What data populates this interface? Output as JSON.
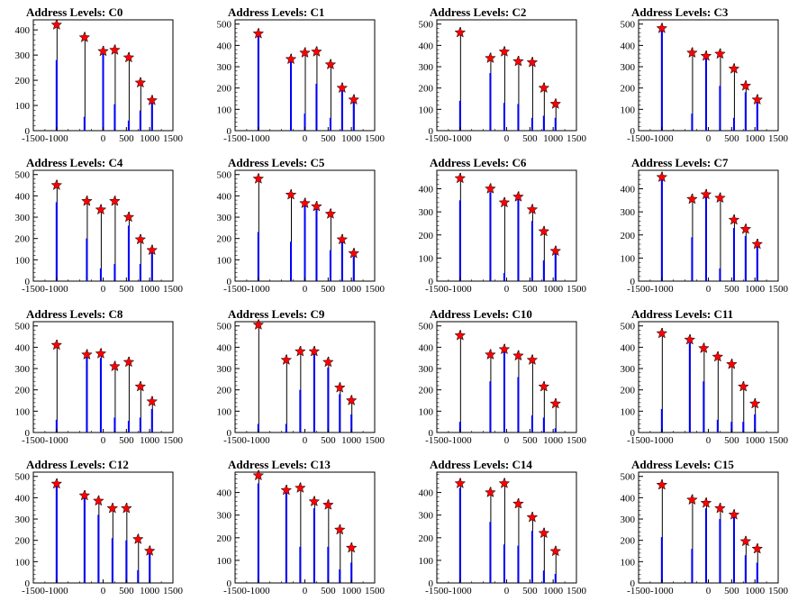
{
  "colors": {
    "bar": "#0000ff",
    "marker": "#ff0000",
    "axis": "#000000",
    "background": "#ffffff"
  },
  "chart_data": [
    {
      "type": "bar",
      "title": "Address Levels: C0",
      "xlim": [
        -1500,
        1500
      ],
      "ylim": [
        0,
        440
      ],
      "xticks": [
        "-1500",
        "-1000",
        "0",
        "500",
        "1000",
        "1500"
      ],
      "yticks": [
        "0",
        "100",
        "200",
        "300",
        "400"
      ],
      "x": [
        -1000,
        -400,
        0,
        250,
        550,
        800,
        1050
      ],
      "values": [
        280,
        55,
        310,
        105,
        40,
        80,
        120
      ],
      "peaks": [
        420,
        370,
        315,
        320,
        290,
        190,
        120
      ]
    },
    {
      "type": "bar",
      "title": "Address Levels: C1",
      "xlim": [
        -1500,
        1500
      ],
      "ylim": [
        0,
        520
      ],
      "xticks": [
        "-1500",
        "-1000",
        "0",
        "500",
        "1000",
        "1500"
      ],
      "yticks": [
        "0",
        "100",
        "200",
        "300",
        "400",
        "500"
      ],
      "x": [
        -1000,
        -300,
        0,
        250,
        550,
        800,
        1050
      ],
      "values": [
        450,
        330,
        80,
        220,
        60,
        190,
        140
      ],
      "peaks": [
        455,
        335,
        365,
        370,
        310,
        200,
        145
      ]
    },
    {
      "type": "bar",
      "title": "Address Levels: C2",
      "xlim": [
        -1500,
        1500
      ],
      "ylim": [
        0,
        520
      ],
      "xticks": [
        "-1500",
        "-1000",
        "0",
        "500",
        "1000",
        "1500"
      ],
      "yticks": [
        "0",
        "100",
        "200",
        "300",
        "400",
        "500"
      ],
      "x": [
        -1000,
        -350,
        -50,
        250,
        550,
        800,
        1050
      ],
      "values": [
        140,
        270,
        130,
        125,
        60,
        70,
        60
      ],
      "peaks": [
        460,
        340,
        370,
        325,
        320,
        200,
        125
      ]
    },
    {
      "type": "bar",
      "title": "Address Levels: C3",
      "xlim": [
        -1500,
        1500
      ],
      "ylim": [
        0,
        520
      ],
      "xticks": [
        "-1500",
        "-1000",
        "0",
        "500",
        "1000",
        "1500"
      ],
      "yticks": [
        "0",
        "100",
        "200",
        "300",
        "400",
        "500"
      ],
      "x": [
        -1000,
        -350,
        -50,
        250,
        550,
        800,
        1050
      ],
      "values": [
        470,
        80,
        360,
        210,
        60,
        180,
        135
      ],
      "peaks": [
        480,
        365,
        350,
        360,
        290,
        210,
        145
      ]
    },
    {
      "type": "bar",
      "title": "Address Levels: C4",
      "xlim": [
        -1500,
        1500
      ],
      "ylim": [
        0,
        520
      ],
      "xticks": [
        "-1500",
        "-1000",
        "0",
        "500",
        "1000",
        "1500"
      ],
      "yticks": [
        "0",
        "100",
        "200",
        "300",
        "400",
        "500"
      ],
      "x": [
        -1000,
        -350,
        -50,
        250,
        550,
        800,
        1050
      ],
      "values": [
        370,
        200,
        60,
        80,
        260,
        80,
        140
      ],
      "peaks": [
        450,
        375,
        335,
        375,
        300,
        195,
        145
      ]
    },
    {
      "type": "bar",
      "title": "Address Levels: C5",
      "xlim": [
        -1500,
        1500
      ],
      "ylim": [
        0,
        520
      ],
      "xticks": [
        "-1500",
        "-1000",
        "0",
        "500",
        "1000",
        "1500"
      ],
      "yticks": [
        "0",
        "100",
        "200",
        "300",
        "400",
        "500"
      ],
      "x": [
        -1000,
        -300,
        0,
        250,
        550,
        800,
        1050
      ],
      "values": [
        230,
        185,
        360,
        340,
        145,
        190,
        115
      ],
      "peaks": [
        480,
        405,
        365,
        350,
        315,
        195,
        130
      ]
    },
    {
      "type": "bar",
      "title": "Address Levels: C6",
      "xlim": [
        -1500,
        1500
      ],
      "ylim": [
        0,
        480
      ],
      "xticks": [
        "-1500",
        "-1000",
        "0",
        "500",
        "1000",
        "1500"
      ],
      "yticks": [
        "0",
        "100",
        "200",
        "300",
        "400"
      ],
      "x": [
        -1000,
        -350,
        -50,
        250,
        550,
        800,
        1050
      ],
      "values": [
        350,
        385,
        35,
        370,
        260,
        90,
        120
      ],
      "peaks": [
        445,
        400,
        340,
        365,
        310,
        215,
        130
      ]
    },
    {
      "type": "bar",
      "title": "Address Levels: C7",
      "xlim": [
        -1500,
        1500
      ],
      "ylim": [
        0,
        480
      ],
      "xticks": [
        "-1500",
        "-1000",
        "0",
        "500",
        "1000",
        "1500"
      ],
      "yticks": [
        "0",
        "100",
        "200",
        "300",
        "400"
      ],
      "x": [
        -1000,
        -350,
        -50,
        250,
        550,
        800,
        1050
      ],
      "values": [
        450,
        190,
        370,
        55,
        230,
        195,
        160
      ],
      "peaks": [
        450,
        355,
        375,
        360,
        265,
        225,
        160
      ]
    },
    {
      "type": "bar",
      "title": "Address Levels: C8",
      "xlim": [
        -1500,
        1500
      ],
      "ylim": [
        0,
        520
      ],
      "xticks": [
        "-1500",
        "-1000",
        "0",
        "500",
        "1000",
        "1500"
      ],
      "yticks": [
        "0",
        "100",
        "200",
        "300",
        "400",
        "500"
      ],
      "x": [
        -1000,
        -350,
        -50,
        250,
        550,
        800,
        1050
      ],
      "values": [
        60,
        360,
        350,
        70,
        55,
        70,
        110
      ],
      "peaks": [
        410,
        365,
        370,
        310,
        330,
        215,
        145
      ]
    },
    {
      "type": "bar",
      "title": "Address Levels: C9",
      "xlim": [
        -1500,
        1500
      ],
      "ylim": [
        0,
        520
      ],
      "xticks": [
        "-1500",
        "-1000",
        "0",
        "500",
        "1000",
        "1500"
      ],
      "yticks": [
        "0",
        "100",
        "200",
        "300",
        "400",
        "500"
      ],
      "x": [
        -1000,
        -400,
        -100,
        200,
        500,
        750,
        1000
      ],
      "values": [
        40,
        40,
        200,
        390,
        305,
        180,
        85
      ],
      "peaks": [
        505,
        340,
        380,
        380,
        330,
        210,
        150
      ]
    },
    {
      "type": "bar",
      "title": "Address Levels: C10",
      "xlim": [
        -1500,
        1500
      ],
      "ylim": [
        0,
        520
      ],
      "xticks": [
        "-1500",
        "-1000",
        "0",
        "500",
        "1000",
        "1500"
      ],
      "yticks": [
        "0",
        "100",
        "200",
        "300",
        "400",
        "500"
      ],
      "x": [
        -1000,
        -350,
        -50,
        250,
        550,
        800,
        1050
      ],
      "values": [
        50,
        240,
        380,
        260,
        80,
        70,
        20
      ],
      "peaks": [
        455,
        365,
        390,
        360,
        340,
        215,
        135
      ]
    },
    {
      "type": "bar",
      "title": "Address Levels: C11",
      "xlim": [
        -1500,
        1500
      ],
      "ylim": [
        0,
        520
      ],
      "xticks": [
        "-1500",
        "-1000",
        "0",
        "500",
        "1000",
        "1500"
      ],
      "yticks": [
        "0",
        "100",
        "200",
        "300",
        "400",
        "500"
      ],
      "x": [
        -1000,
        -400,
        -100,
        200,
        500,
        750,
        1000
      ],
      "values": [
        110,
        420,
        240,
        60,
        50,
        50,
        85
      ],
      "peaks": [
        465,
        435,
        395,
        355,
        320,
        215,
        135
      ]
    },
    {
      "type": "bar",
      "title": "Address Levels: C12",
      "xlim": [
        -1500,
        1500
      ],
      "ylim": [
        0,
        520
      ],
      "xticks": [
        "-1500",
        "-1000",
        "0",
        "500",
        "1000",
        "1500"
      ],
      "yticks": [
        "0",
        "100",
        "200",
        "300",
        "400",
        "500"
      ],
      "x": [
        -1000,
        -400,
        -100,
        200,
        500,
        750,
        1000
      ],
      "values": [
        460,
        400,
        320,
        210,
        200,
        60,
        140
      ],
      "peaks": [
        465,
        410,
        385,
        350,
        350,
        205,
        150
      ]
    },
    {
      "type": "bar",
      "title": "Address Levels: C13",
      "xlim": [
        -1500,
        1500
      ],
      "ylim": [
        0,
        490
      ],
      "xticks": [
        "-1500",
        "-1000",
        "0",
        "500",
        "1000",
        "1500"
      ],
      "yticks": [
        "0",
        "100",
        "200",
        "300",
        "400"
      ],
      "x": [
        -1000,
        -400,
        -100,
        200,
        500,
        750,
        1000
      ],
      "values": [
        440,
        415,
        160,
        330,
        160,
        60,
        90
      ],
      "peaks": [
        475,
        410,
        420,
        360,
        345,
        235,
        155
      ]
    },
    {
      "type": "bar",
      "title": "Address Levels: C14",
      "xlim": [
        -1500,
        1500
      ],
      "ylim": [
        0,
        490
      ],
      "xticks": [
        "-1500",
        "-1000",
        "0",
        "500",
        "1000",
        "1500"
      ],
      "yticks": [
        "0",
        "100",
        "200",
        "300",
        "400"
      ],
      "x": [
        -1000,
        -350,
        -50,
        250,
        550,
        800,
        1050
      ],
      "values": [
        420,
        270,
        170,
        165,
        230,
        55,
        40
      ],
      "peaks": [
        440,
        400,
        440,
        350,
        290,
        220,
        140
      ]
    },
    {
      "type": "bar",
      "title": "Address Levels: C15",
      "xlim": [
        -1500,
        1500
      ],
      "ylim": [
        0,
        520
      ],
      "xticks": [
        "-1500",
        "-1000",
        "0",
        "500",
        "1000",
        "1500"
      ],
      "yticks": [
        "0",
        "100",
        "200",
        "300",
        "400",
        "500"
      ],
      "x": [
        -1000,
        -350,
        -50,
        250,
        550,
        800,
        1050
      ],
      "values": [
        215,
        160,
        350,
        300,
        310,
        130,
        95
      ],
      "peaks": [
        460,
        390,
        375,
        350,
        320,
        195,
        160
      ]
    }
  ]
}
